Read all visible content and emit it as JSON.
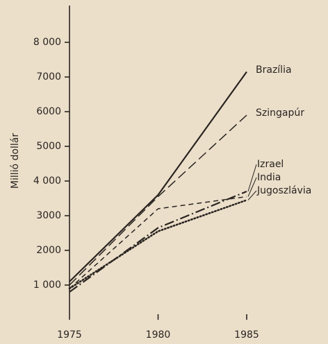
{
  "chart_data": {
    "type": "line",
    "y_label": "Millió dollár",
    "x": [
      1975,
      1980,
      1985
    ],
    "xlim": [
      1975,
      1989
    ],
    "xticks": [
      1975,
      1980,
      1985
    ],
    "ylim": [
      0,
      9000
    ],
    "yticks": [
      {
        "value": 1000,
        "label": "1 000"
      },
      2000,
      3000,
      {
        "value": 4000,
        "label": "4 000"
      },
      5000,
      6000,
      7000,
      {
        "value": 8000,
        "label": "8 000"
      }
    ],
    "series": [
      {
        "name": "Brazília",
        "color": "#2a2420",
        "values": [
          1100,
          3600,
          7150
        ]
      },
      {
        "name": "Szingapúr",
        "color": "#2a2420",
        "values": [
          1000,
          3550,
          5900
        ]
      },
      {
        "name": "Izrael",
        "color": "#2a2420",
        "values": [
          800,
          2650,
          3700
        ]
      },
      {
        "name": "India",
        "color": "#2a2420",
        "values": [
          900,
          3200,
          3550
        ]
      },
      {
        "name": "Jugoszlávia",
        "color": "#2a2420",
        "values": [
          900,
          2550,
          3450
        ]
      }
    ]
  }
}
